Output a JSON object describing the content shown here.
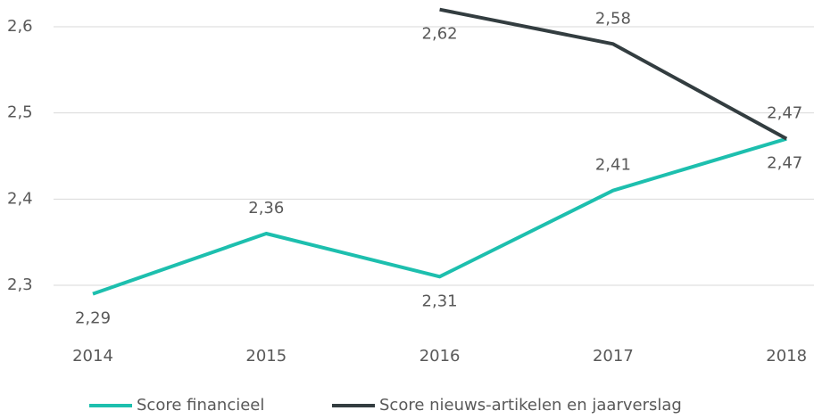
{
  "chart_data": {
    "type": "line",
    "x": [
      "2014",
      "2015",
      "2016",
      "2017",
      "2018"
    ],
    "series": [
      {
        "name": "Score financieel",
        "color": "#1dbfae",
        "values": [
          2.29,
          2.36,
          2.31,
          2.41,
          2.47
        ],
        "value_labels": [
          "2,29",
          "2,36",
          "2,31",
          "2,41",
          "2,47"
        ]
      },
      {
        "name": "Score nieuws-artikelen en jaarverslag",
        "color": "#333d40",
        "values": [
          null,
          null,
          2.62,
          2.58,
          2.47
        ],
        "value_labels": [
          null,
          null,
          "2,62",
          "2,58",
          "2,47"
        ]
      }
    ],
    "ylim": [
      2.24,
      2.63
    ],
    "yticks": [
      {
        "value": 2.3,
        "label": "2,3"
      },
      {
        "value": 2.4,
        "label": "2,4"
      },
      {
        "value": 2.5,
        "label": "2,5"
      },
      {
        "value": 2.6,
        "label": "2,6"
      }
    ],
    "grid": true,
    "legend": "bottom"
  }
}
